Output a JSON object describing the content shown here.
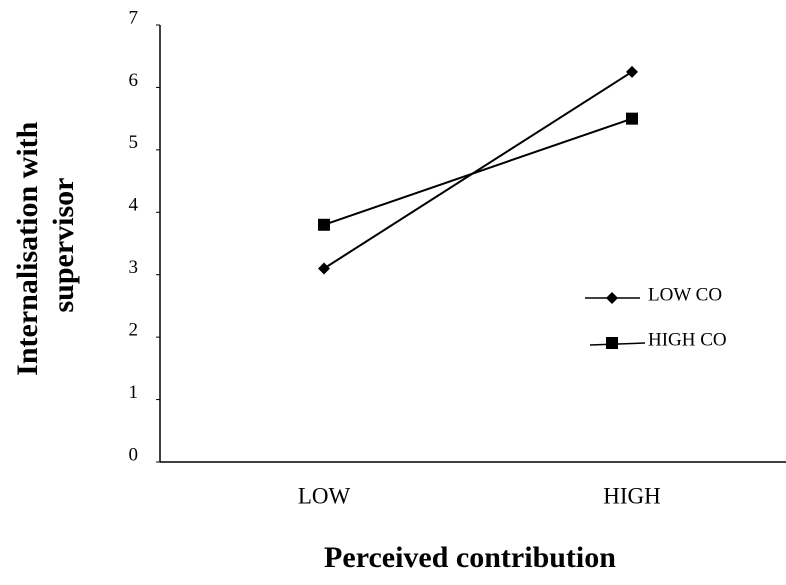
{
  "chart_data": {
    "type": "line",
    "xlabel": "Perceived contribution",
    "ylabel": [
      "Internalisation with",
      "supervisor"
    ],
    "categories": [
      "LOW",
      "HIGH"
    ],
    "series": [
      {
        "name": "LOW CO",
        "color": "#000000",
        "marker": "diamond",
        "values": [
          3.1,
          6.25
        ]
      },
      {
        "name": "HIGH CO",
        "color": "#000000",
        "marker": "square",
        "values": [
          3.8,
          5.5
        ]
      }
    ],
    "ylim": [
      0,
      7
    ],
    "yticks": [
      0,
      1,
      2,
      3,
      4,
      5,
      6,
      7
    ],
    "grid": false,
    "legend": "right"
  }
}
